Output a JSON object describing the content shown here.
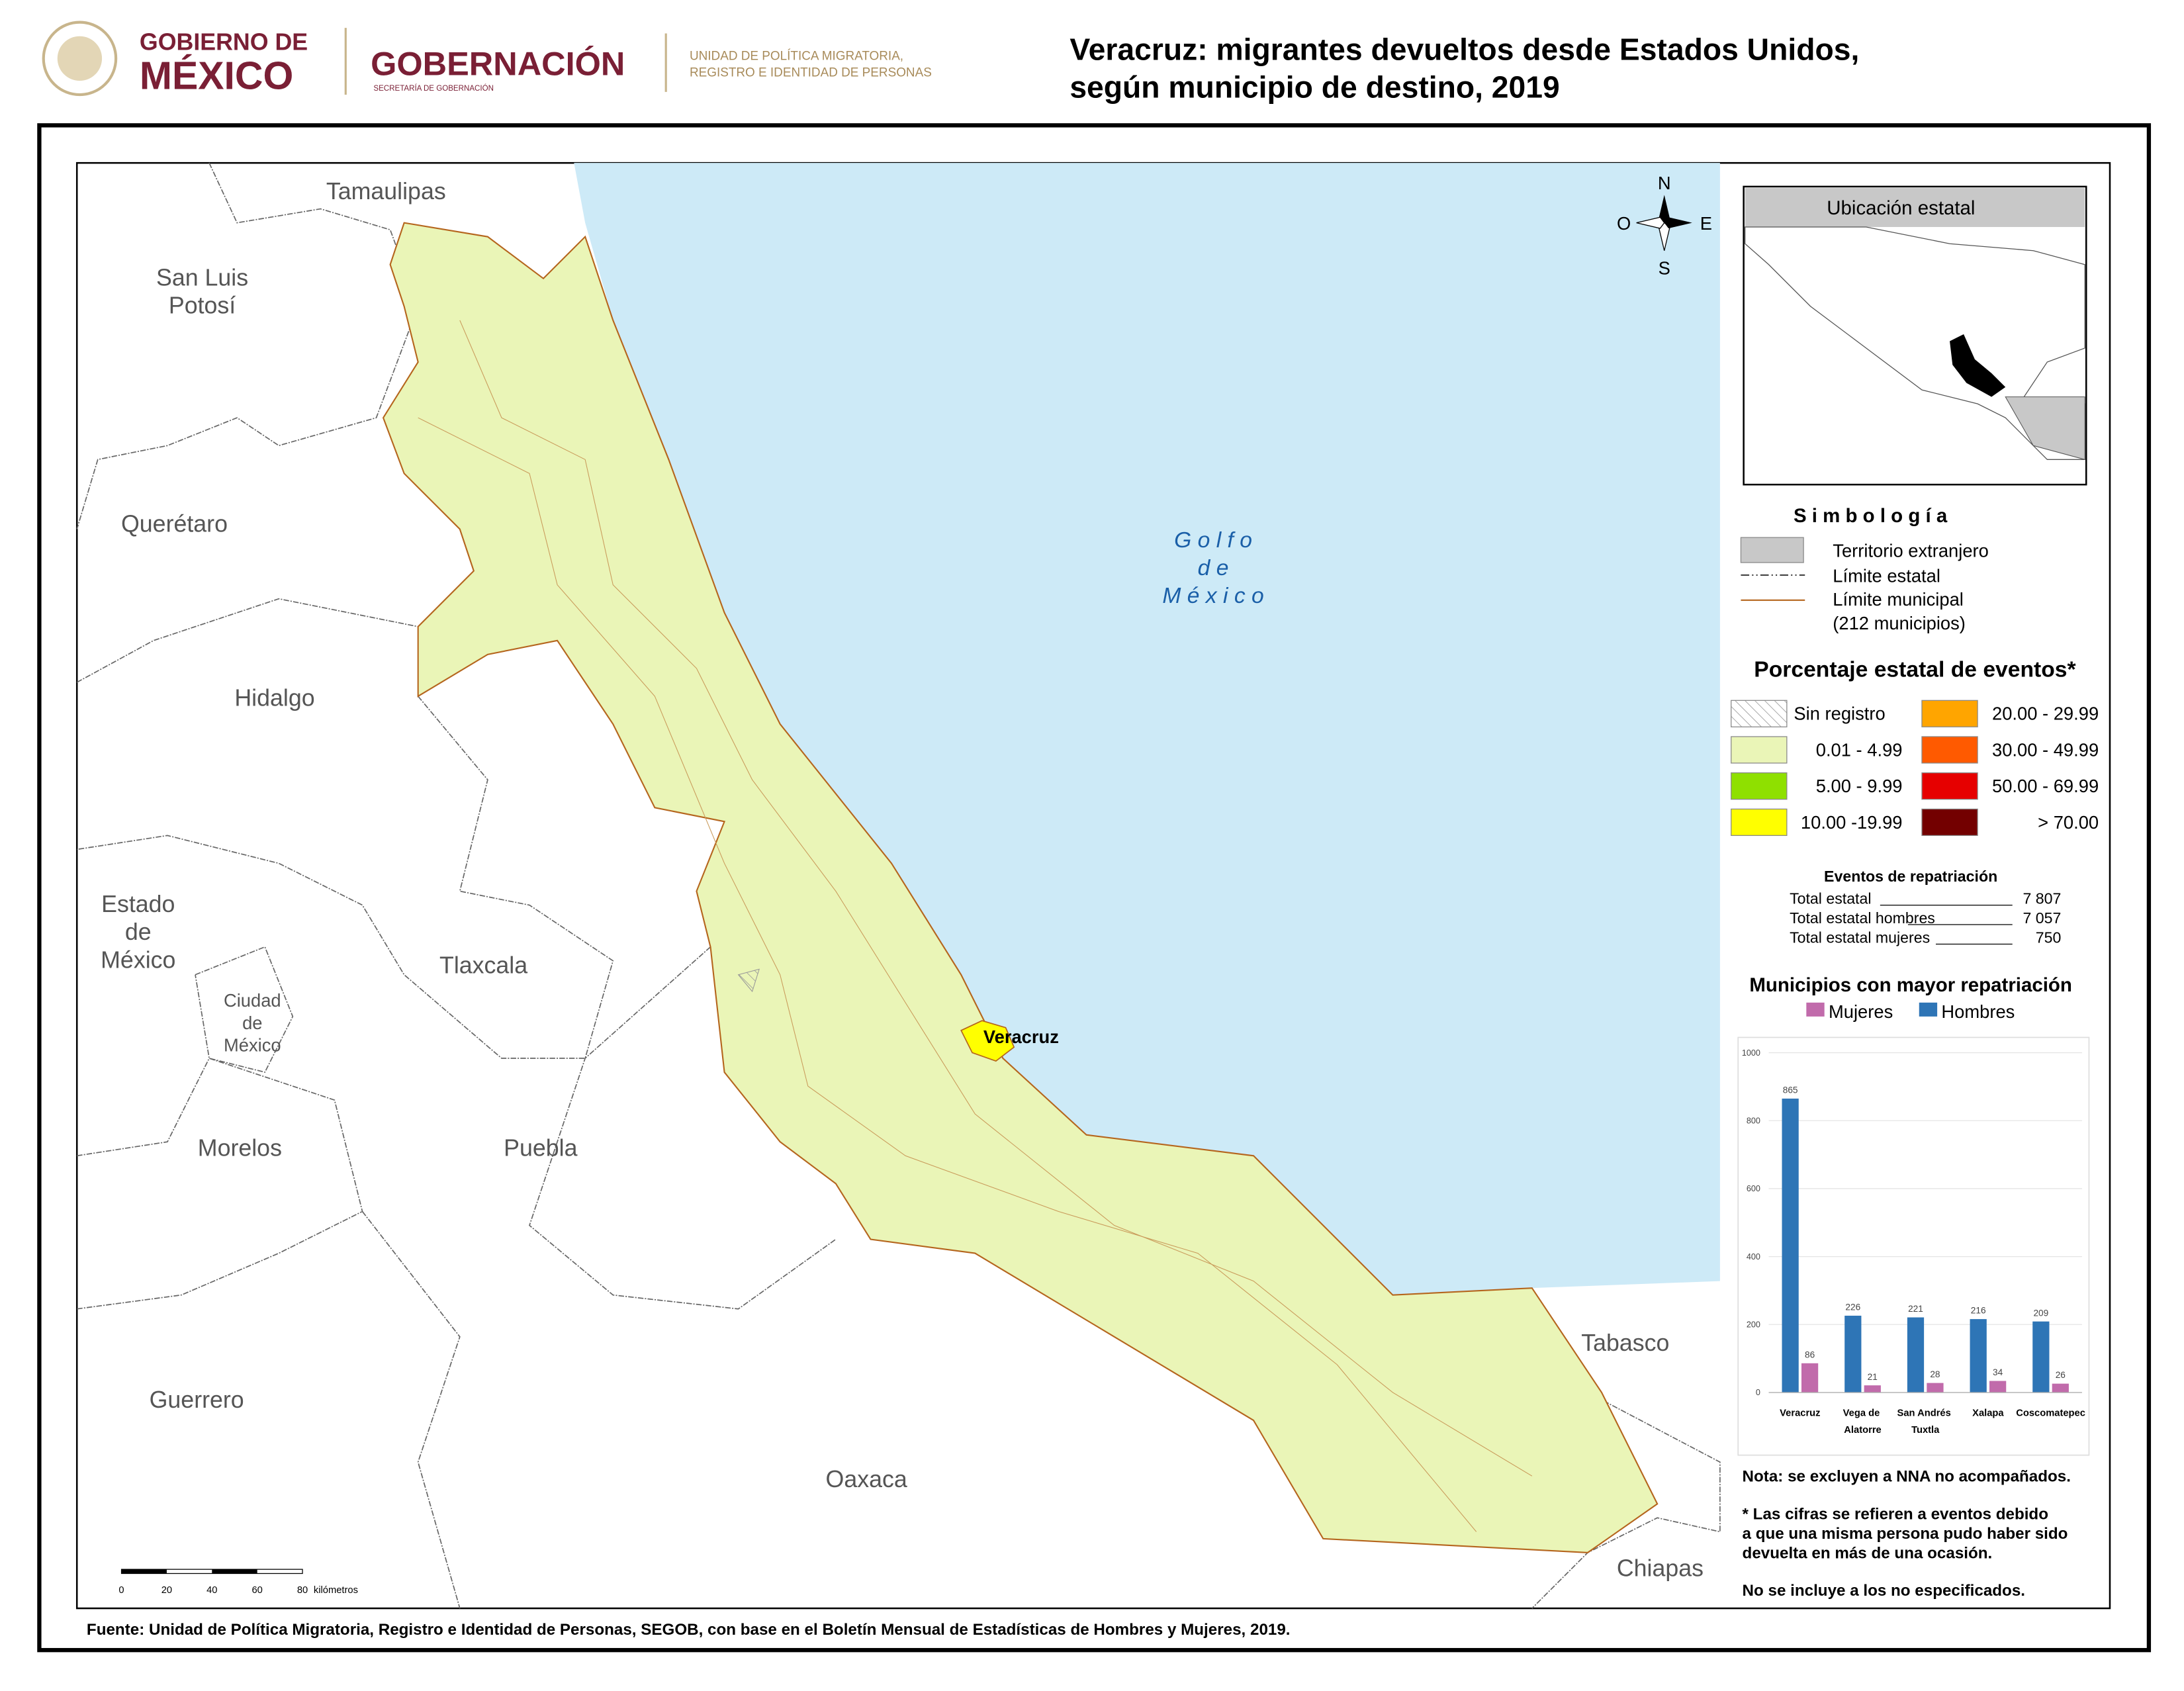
{
  "header": {
    "gov_line1": "GOBIERNO DE",
    "gov_line2": "MÉXICO",
    "ministry": "GOBERNACIÓN",
    "ministry_sub": "SECRETARÍA DE GOBERNACIÓN",
    "unit_line1": "UNIDAD DE POLÍTICA MIGRATORIA,",
    "unit_line2": "REGISTRO E IDENTIDAD DE PERSONAS"
  },
  "title": [
    "Veracruz: migrantes devueltos desde Estados Unidos,",
    "según municipio de destino, 2019"
  ],
  "map": {
    "labels": [
      {
        "lines": [
          "Tamaulipas"
        ],
        "x": 277,
        "y": 138
      },
      {
        "lines": [
          "San Luis",
          "Potosí"
        ],
        "x": 145,
        "y": 200
      },
      {
        "lines": [
          "Querétaro"
        ],
        "x": 125,
        "y": 377
      },
      {
        "lines": [
          "Hidalgo"
        ],
        "x": 197,
        "y": 502
      },
      {
        "lines": [
          "Estado",
          "de",
          "México"
        ],
        "x": 99,
        "y": 650
      },
      {
        "lines": [
          "Tlaxcala"
        ],
        "x": 347,
        "y": 694
      },
      {
        "lines": [
          "Ciudad",
          "de",
          "México"
        ],
        "x": 181,
        "y": 718
      },
      {
        "lines": [
          "Morelos"
        ],
        "x": 172,
        "y": 825
      },
      {
        "lines": [
          "Puebla"
        ],
        "x": 388,
        "y": 825
      },
      {
        "lines": [
          "Tabasco"
        ],
        "x": 1167,
        "y": 965
      },
      {
        "lines": [
          "Guerrero"
        ],
        "x": 141,
        "y": 1006
      },
      {
        "lines": [
          "Oaxaca"
        ],
        "x": 622,
        "y": 1063
      },
      {
        "lines": [
          "Chiapas"
        ],
        "x": 1192,
        "y": 1127
      }
    ],
    "gulf": [
      "G o l f o",
      "d e",
      "M é x i c o"
    ],
    "city": "Veracruz",
    "compass": {
      "n": "N",
      "s": "S",
      "e": "E",
      "w": "O"
    },
    "scale": {
      "ticks": [
        "0",
        "20",
        "40",
        "60",
        "80"
      ],
      "unit": "kilómetros"
    }
  },
  "inset": {
    "title": "Ubicación estatal"
  },
  "legend": {
    "title": "S i m b o l o g í a",
    "items": [
      "Territorio extranjero",
      "Límite estatal",
      "Límite municipal",
      "(212 municipios)"
    ],
    "pct_title": "Porcentaje estatal de eventos*",
    "ranges": [
      {
        "label": "Sin registro",
        "color": null
      },
      {
        "label": "0.01  - 4.99",
        "color": "#eaf5b7"
      },
      {
        "label": "5.00  - 9.99",
        "color": "#8fe000"
      },
      {
        "label": "10.00 -19.99",
        "color": "#ffff00"
      },
      {
        "label": "20.00 - 29.99",
        "color": "#ffa500"
      },
      {
        "label": "30.00 - 49.99",
        "color": "#ff5a00"
      },
      {
        "label": "50.00 - 69.99",
        "color": "#e60000"
      },
      {
        "label": "> 70.00",
        "color": "#730000"
      }
    ]
  },
  "events": {
    "title": "Eventos de repatriación",
    "rows": [
      [
        "Total estatal",
        "7 807"
      ],
      [
        "Total estatal hombres",
        "7 057"
      ],
      [
        "Total estatal mujeres",
        "750"
      ]
    ]
  },
  "chart_data": {
    "type": "bar",
    "title": "Municipios con mayor repatriación",
    "categories": [
      "Veracruz",
      "Vega de Alatorre",
      "San Andrés Tuxtla",
      "Xalapa",
      "Coscomatepec"
    ],
    "series": [
      {
        "name": "Hombres",
        "color": "#2e75b6",
        "values": [
          865,
          226,
          221,
          216,
          209
        ]
      },
      {
        "name": "Mujeres",
        "color": "#c16bab",
        "values": [
          86,
          21,
          28,
          34,
          26
        ]
      }
    ],
    "ylim": [
      0,
      1000
    ],
    "yticks": [
      0,
      200,
      400,
      600,
      800,
      1000
    ],
    "grid": true
  },
  "notes": [
    "Nota: se excluyen a NNA no acompañados.",
    "* Las cifras se refieren a eventos debido",
    "a que una misma persona pudo haber sido",
    "devuelta en más de una ocasión.",
    "No se incluye a los no especificados."
  ],
  "source": "Fuente: Unidad de Política Migratoria, Registro e Identidad de Personas, SEGOB, con base en el Boletín Mensual de Estadísticas de Hombres y Mujeres, 2019."
}
